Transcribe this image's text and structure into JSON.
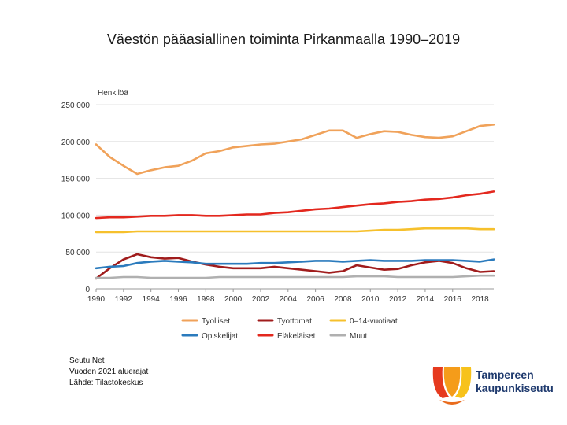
{
  "title": "Väestön pääasiallinen toiminta Pirkanmaalla 1990–2019",
  "source": {
    "line1": "Seutu.Net",
    "line2": "Vuoden 2021 aluerajat",
    "line3": "Lähde: Tilastokeskus"
  },
  "logo": {
    "line1": "Tampereen",
    "line2": "kaupunkiseutu"
  },
  "chart_data": {
    "type": "line",
    "title": "Väestön pääasiallinen toiminta Pirkanmaalla 1990–2019",
    "ylabel": "Henkilöä",
    "xlabel": "",
    "x": [
      1990,
      1991,
      1992,
      1993,
      1994,
      1995,
      1996,
      1997,
      1998,
      1999,
      2000,
      2001,
      2002,
      2003,
      2004,
      2005,
      2006,
      2007,
      2008,
      2009,
      2010,
      2011,
      2012,
      2013,
      2014,
      2015,
      2016,
      2017,
      2018,
      2019
    ],
    "xticks": [
      "1990",
      "1992",
      "1994",
      "1996",
      "1998",
      "2000",
      "2002",
      "2004",
      "2006",
      "2008",
      "2010",
      "2012",
      "2014",
      "2016",
      "2018"
    ],
    "ylim": [
      0,
      250000
    ],
    "yticks": [
      "0",
      "50 000",
      "100 000",
      "150 000",
      "200 000",
      "250 000"
    ],
    "grid": true,
    "legend_position": "bottom",
    "series": [
      {
        "name": "Tyolliset",
        "color": "#f0a25a",
        "values": [
          196000,
          179000,
          167000,
          156000,
          161000,
          165000,
          167000,
          174000,
          184000,
          187000,
          192000,
          194000,
          196000,
          197000,
          200000,
          203000,
          209000,
          215000,
          215000,
          205000,
          210000,
          214000,
          213000,
          209000,
          206000,
          205000,
          207000,
          214000,
          221000,
          223000
        ]
      },
      {
        "name": "Tyottomat",
        "color": "#a01c1c",
        "values": [
          14000,
          28000,
          40000,
          47000,
          43000,
          41000,
          42000,
          37000,
          33000,
          30000,
          28000,
          28000,
          28000,
          30000,
          28000,
          26000,
          24000,
          22000,
          24000,
          32000,
          29000,
          26000,
          27000,
          32000,
          36000,
          38000,
          35000,
          28000,
          23000,
          24000
        ]
      },
      {
        "name": "0–14-vuotiaat",
        "color": "#f6c02c",
        "values": [
          77000,
          77000,
          77000,
          78000,
          78000,
          78000,
          78000,
          78000,
          78000,
          78000,
          78000,
          78000,
          78000,
          78000,
          78000,
          78000,
          78000,
          78000,
          78000,
          78000,
          79000,
          80000,
          80000,
          81000,
          82000,
          82000,
          82000,
          82000,
          81000,
          81000
        ]
      },
      {
        "name": "Opiskelijat",
        "color": "#2b7bbd",
        "values": [
          28000,
          30000,
          31000,
          35000,
          37000,
          38000,
          37000,
          36000,
          34000,
          34000,
          34000,
          34000,
          35000,
          35000,
          36000,
          37000,
          38000,
          38000,
          37000,
          38000,
          39000,
          38000,
          38000,
          38000,
          39000,
          39000,
          39000,
          38000,
          37000,
          40000
        ]
      },
      {
        "name": "Eläkeläiset",
        "color": "#e3281e",
        "values": [
          96000,
          97000,
          97000,
          98000,
          99000,
          99000,
          100000,
          100000,
          99000,
          99000,
          100000,
          101000,
          101000,
          103000,
          104000,
          106000,
          108000,
          109000,
          111000,
          113000,
          115000,
          116000,
          118000,
          119000,
          121000,
          122000,
          124000,
          127000,
          129000,
          132000
        ]
      },
      {
        "name": "Muut",
        "color": "#b0b0b0",
        "values": [
          15000,
          15000,
          16000,
          16000,
          15000,
          15000,
          15000,
          15000,
          15000,
          16000,
          16000,
          16000,
          16000,
          16000,
          16000,
          16000,
          16000,
          16000,
          16000,
          17000,
          17000,
          17000,
          16000,
          16000,
          16000,
          16000,
          16000,
          17000,
          18000,
          18000
        ]
      }
    ]
  }
}
